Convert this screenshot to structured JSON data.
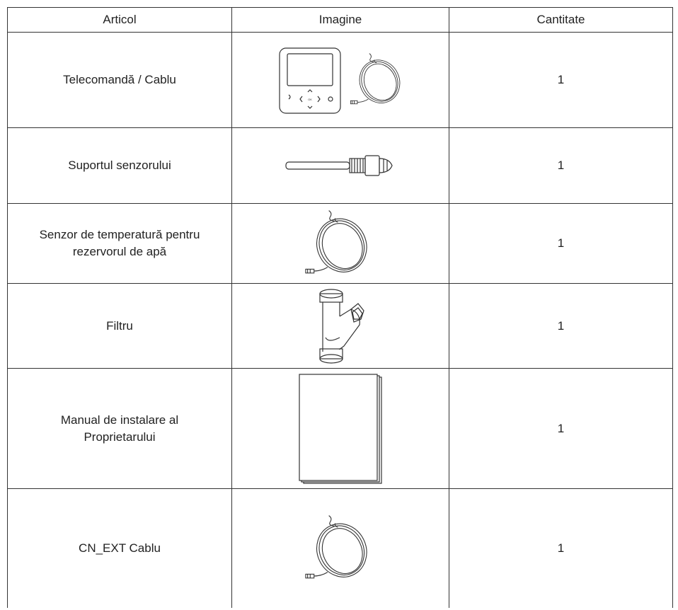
{
  "table": {
    "headers": [
      "Articol",
      "Imagine",
      "Cantitate"
    ],
    "rows": [
      {
        "item": [
          "Telecomandă / Cablu"
        ],
        "quantity": 1
      },
      {
        "item": [
          "Suportul senzorului"
        ],
        "quantity": 1
      },
      {
        "item": [
          "Senzor de temperatură pentru",
          "rezervorul de apă"
        ],
        "quantity": 1
      },
      {
        "item": [
          "Filtru"
        ],
        "quantity": 1
      },
      {
        "item": [
          "Manual de instalare al",
          "Proprietarului"
        ],
        "quantity": 1
      },
      {
        "item": [
          "CN_EXT Cablu"
        ],
        "quantity": 1
      }
    ]
  }
}
